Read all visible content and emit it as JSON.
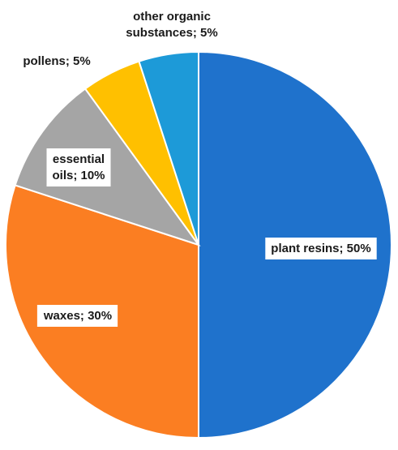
{
  "chart_data": {
    "type": "pie",
    "categories": [
      "plant resins",
      "waxes",
      "essential oils",
      "pollens",
      "other organic substances"
    ],
    "values": [
      50,
      30,
      10,
      5,
      5
    ],
    "labels": [
      {
        "lines": [
          "plant resins; 50%"
        ],
        "boxed": true
      },
      {
        "lines": [
          "waxes; 30%"
        ],
        "boxed": true
      },
      {
        "lines": [
          "essential",
          "oils; 10%"
        ],
        "boxed": true
      },
      {
        "lines": [
          "pollens; 5%"
        ],
        "boxed": false
      },
      {
        "lines": [
          "other organic",
          "substances; 5%"
        ],
        "boxed": false
      }
    ],
    "colors": [
      "#1f72cc",
      "#fb7e22",
      "#a5a5a5",
      "#ffc000",
      "#1d9ad8"
    ],
    "start_angle": "12 o'clock",
    "direction": "clockwise",
    "legend": "none"
  }
}
